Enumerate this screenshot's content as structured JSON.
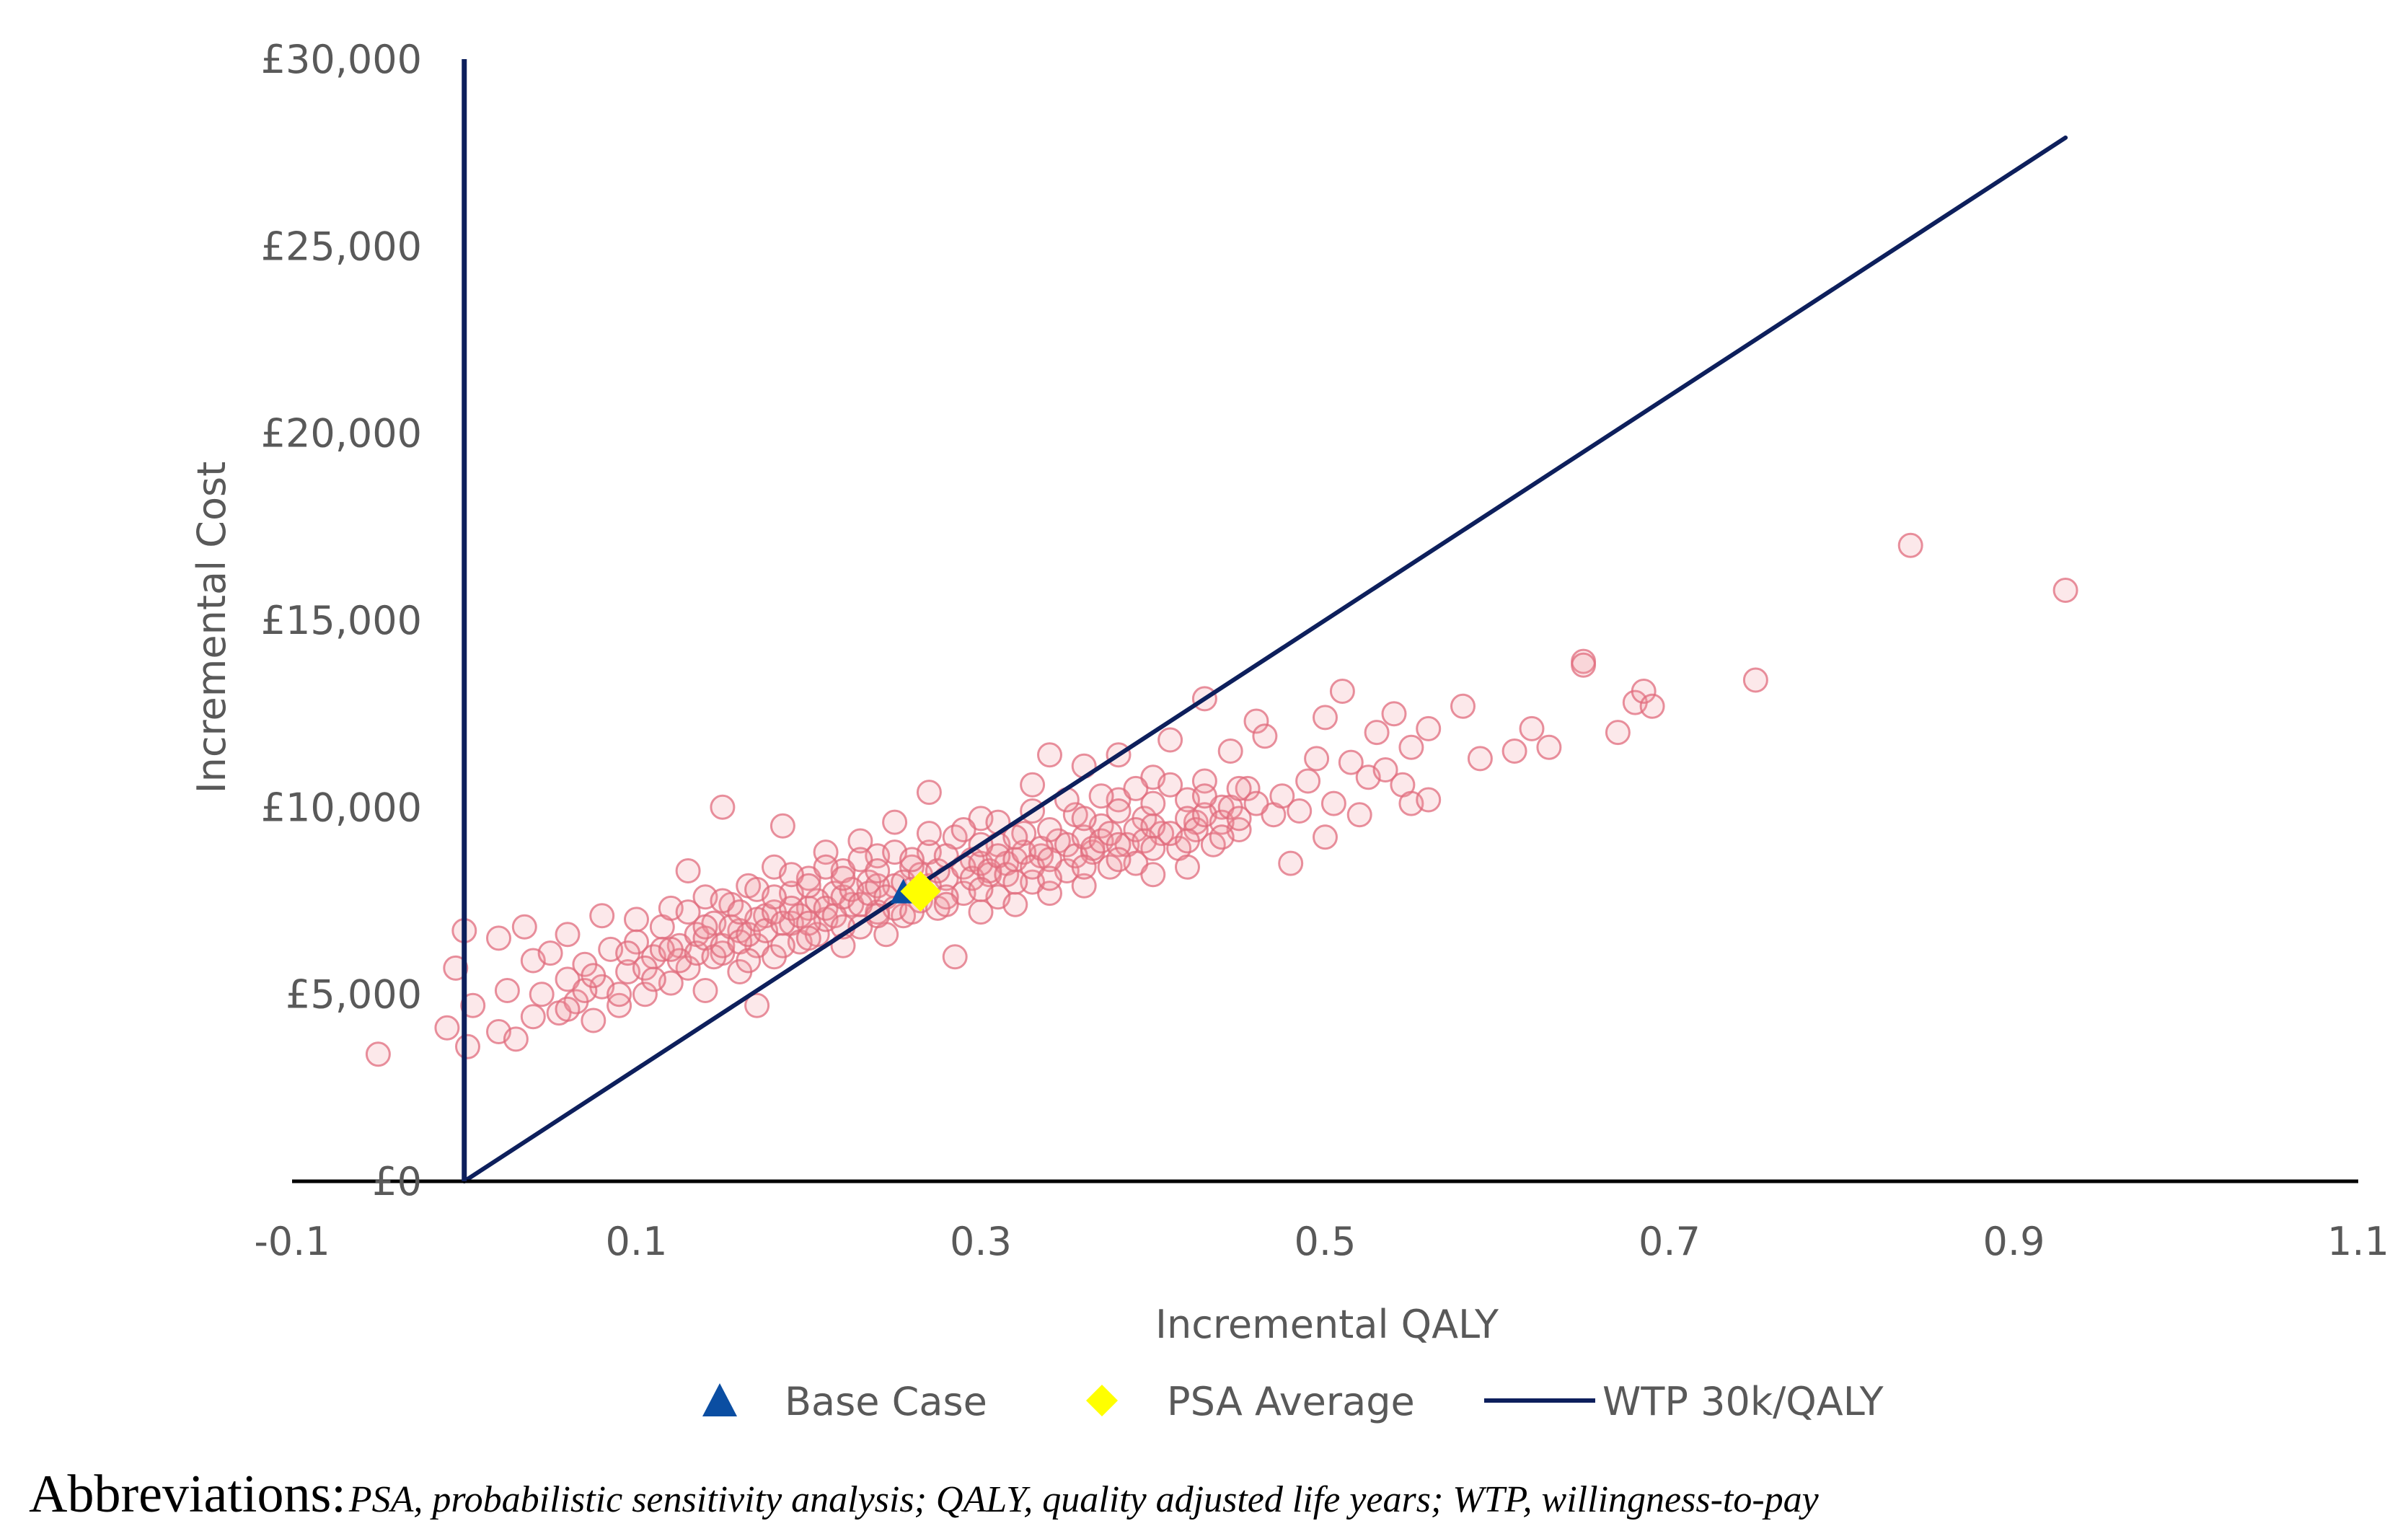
{
  "chart_data": {
    "type": "scatter",
    "xlabel": "Incremental QALY",
    "ylabel": "Incremental Cost",
    "xlim": [
      -0.1,
      1.1
    ],
    "ylim": [
      0,
      30000
    ],
    "x_ticks": [
      -0.1,
      0.1,
      0.3,
      0.5,
      0.7,
      0.9,
      1.1
    ],
    "x_tick_labels": [
      "-0.1",
      "0.1",
      "0.3",
      "0.5",
      "0.7",
      "0.9",
      "1.1"
    ],
    "y_ticks": [
      0,
      5000,
      10000,
      15000,
      20000,
      25000,
      30000
    ],
    "y_tick_labels": [
      "£0",
      "£5,000",
      "£10,000",
      "£15,000",
      "£20,000",
      "£25,000",
      "£30,000"
    ],
    "grid": false,
    "legend_position": "bottom",
    "colors": {
      "psa_points": "#e06b7c",
      "base_case": "#0b4ea2",
      "psa_average": "#ffff00",
      "wtp_line": "#0d1f5c",
      "axis": "#000000"
    },
    "series": [
      {
        "name": "PSA simulations",
        "type": "scatter",
        "in_legend": false,
        "points": [
          [
            -0.05,
            3400
          ],
          [
            -0.01,
            4100
          ],
          [
            -0.005,
            5700
          ],
          [
            0.0,
            6700
          ],
          [
            0.002,
            3600
          ],
          [
            0.005,
            4700
          ],
          [
            0.02,
            4000
          ],
          [
            0.02,
            6500
          ],
          [
            0.025,
            5100
          ],
          [
            0.03,
            3800
          ],
          [
            0.035,
            6800
          ],
          [
            0.04,
            4400
          ],
          [
            0.04,
            5900
          ],
          [
            0.045,
            5000
          ],
          [
            0.05,
            6100
          ],
          [
            0.055,
            4500
          ],
          [
            0.06,
            5400
          ],
          [
            0.06,
            6600
          ],
          [
            0.065,
            4800
          ],
          [
            0.07,
            5800
          ],
          [
            0.075,
            4300
          ],
          [
            0.08,
            7100
          ],
          [
            0.08,
            5200
          ],
          [
            0.085,
            6200
          ],
          [
            0.09,
            4700
          ],
          [
            0.095,
            5600
          ],
          [
            0.1,
            6400
          ],
          [
            0.1,
            7000
          ],
          [
            0.105,
            5000
          ],
          [
            0.11,
            6000
          ],
          [
            0.115,
            6800
          ],
          [
            0.12,
            5300
          ],
          [
            0.12,
            7300
          ],
          [
            0.125,
            6300
          ],
          [
            0.13,
            5700
          ],
          [
            0.13,
            8300
          ],
          [
            0.135,
            6600
          ],
          [
            0.14,
            7600
          ],
          [
            0.14,
            5100
          ],
          [
            0.145,
            6900
          ],
          [
            0.15,
            10000
          ],
          [
            0.15,
            6100
          ],
          [
            0.155,
            7400
          ],
          [
            0.16,
            5600
          ],
          [
            0.16,
            6700
          ],
          [
            0.165,
            7900
          ],
          [
            0.17,
            6300
          ],
          [
            0.17,
            4700
          ],
          [
            0.175,
            7100
          ],
          [
            0.18,
            8400
          ],
          [
            0.18,
            6000
          ],
          [
            0.185,
            9500
          ],
          [
            0.19,
            6900
          ],
          [
            0.19,
            7700
          ],
          [
            0.195,
            6400
          ],
          [
            0.2,
            7300
          ],
          [
            0.2,
            8100
          ],
          [
            0.205,
            6600
          ],
          [
            0.21,
            8800
          ],
          [
            0.21,
            7000
          ],
          [
            0.215,
            7700
          ],
          [
            0.22,
            6300
          ],
          [
            0.22,
            8300
          ],
          [
            0.225,
            7400
          ],
          [
            0.23,
            9100
          ],
          [
            0.23,
            6800
          ],
          [
            0.235,
            8000
          ],
          [
            0.24,
            7200
          ],
          [
            0.24,
            8700
          ],
          [
            0.245,
            6600
          ],
          [
            0.25,
            7900
          ],
          [
            0.25,
            9600
          ],
          [
            0.255,
            7100
          ],
          [
            0.26,
            8400
          ],
          [
            0.265,
            7500
          ],
          [
            0.27,
            8800
          ],
          [
            0.27,
            10400
          ],
          [
            0.275,
            7300
          ],
          [
            0.28,
            8100
          ],
          [
            0.285,
            9200
          ],
          [
            0.285,
            6000
          ],
          [
            0.29,
            7700
          ],
          [
            0.295,
            8600
          ],
          [
            0.3,
            7200
          ],
          [
            0.3,
            9700
          ],
          [
            0.305,
            8200
          ],
          [
            0.31,
            7600
          ],
          [
            0.31,
            9000
          ],
          [
            0.315,
            8500
          ],
          [
            0.32,
            7400
          ],
          [
            0.325,
            9300
          ],
          [
            0.33,
            8000
          ],
          [
            0.33,
            10600
          ],
          [
            0.335,
            8700
          ],
          [
            0.34,
            7700
          ],
          [
            0.34,
            11400
          ],
          [
            0.345,
            9100
          ],
          [
            0.35,
            8300
          ],
          [
            0.355,
            9800
          ],
          [
            0.36,
            7900
          ],
          [
            0.36,
            11100
          ],
          [
            0.365,
            8800
          ],
          [
            0.37,
            9500
          ],
          [
            0.375,
            8400
          ],
          [
            0.38,
            10200
          ],
          [
            0.38,
            11400
          ],
          [
            0.385,
            9000
          ],
          [
            0.39,
            8500
          ],
          [
            0.395,
            9700
          ],
          [
            0.4,
            8200
          ],
          [
            0.4,
            10800
          ],
          [
            0.405,
            9300
          ],
          [
            0.41,
            11800
          ],
          [
            0.415,
            8900
          ],
          [
            0.42,
            10200
          ],
          [
            0.42,
            8400
          ],
          [
            0.425,
            9600
          ],
          [
            0.43,
            10700
          ],
          [
            0.43,
            12900
          ],
          [
            0.435,
            9000
          ],
          [
            0.44,
            10000
          ],
          [
            0.445,
            11500
          ],
          [
            0.45,
            9400
          ],
          [
            0.455,
            10500
          ],
          [
            0.46,
            12300
          ],
          [
            0.465,
            11900
          ],
          [
            0.47,
            9800
          ],
          [
            0.475,
            10300
          ],
          [
            0.48,
            8500
          ],
          [
            0.485,
            9900
          ],
          [
            0.49,
            10700
          ],
          [
            0.495,
            11300
          ],
          [
            0.5,
            9200
          ],
          [
            0.5,
            12400
          ],
          [
            0.505,
            10100
          ],
          [
            0.51,
            13100
          ],
          [
            0.515,
            11200
          ],
          [
            0.52,
            9800
          ],
          [
            0.525,
            10800
          ],
          [
            0.53,
            12000
          ],
          [
            0.535,
            11000
          ],
          [
            0.54,
            12500
          ],
          [
            0.545,
            10600
          ],
          [
            0.55,
            11600
          ],
          [
            0.55,
            10100
          ],
          [
            0.56,
            12100
          ],
          [
            0.56,
            10200
          ],
          [
            0.58,
            12700
          ],
          [
            0.59,
            11300
          ],
          [
            0.61,
            11500
          ],
          [
            0.62,
            12100
          ],
          [
            0.63,
            11600
          ],
          [
            0.65,
            13900
          ],
          [
            0.65,
            13800
          ],
          [
            0.67,
            12000
          ],
          [
            0.68,
            12800
          ],
          [
            0.685,
            13100
          ],
          [
            0.69,
            12700
          ],
          [
            0.75,
            13400
          ],
          [
            0.84,
            17000
          ],
          [
            0.93,
            15800
          ],
          [
            0.06,
            4600
          ],
          [
            0.07,
            5100
          ],
          [
            0.075,
            5500
          ],
          [
            0.09,
            5000
          ],
          [
            0.095,
            6100
          ],
          [
            0.105,
            5700
          ],
          [
            0.11,
            5400
          ],
          [
            0.115,
            6200
          ],
          [
            0.125,
            5900
          ],
          [
            0.135,
            6100
          ],
          [
            0.14,
            6500
          ],
          [
            0.145,
            6000
          ],
          [
            0.15,
            6300
          ],
          [
            0.155,
            6800
          ],
          [
            0.16,
            6400
          ],
          [
            0.165,
            6600
          ],
          [
            0.17,
            7000
          ],
          [
            0.175,
            6700
          ],
          [
            0.18,
            7200
          ],
          [
            0.185,
            6900
          ],
          [
            0.19,
            7300
          ],
          [
            0.195,
            7100
          ],
          [
            0.2,
            6900
          ],
          [
            0.205,
            7500
          ],
          [
            0.21,
            7300
          ],
          [
            0.215,
            7100
          ],
          [
            0.22,
            7600
          ],
          [
            0.225,
            7800
          ],
          [
            0.23,
            7400
          ],
          [
            0.235,
            7700
          ],
          [
            0.24,
            7900
          ],
          [
            0.245,
            7600
          ],
          [
            0.25,
            7300
          ],
          [
            0.255,
            8000
          ],
          [
            0.26,
            7800
          ],
          [
            0.265,
            8200
          ],
          [
            0.27,
            7900
          ],
          [
            0.275,
            8300
          ],
          [
            0.28,
            7600
          ],
          [
            0.29,
            8400
          ],
          [
            0.295,
            8100
          ],
          [
            0.3,
            8500
          ],
          [
            0.305,
            8300
          ],
          [
            0.31,
            8700
          ],
          [
            0.315,
            8200
          ],
          [
            0.32,
            8600
          ],
          [
            0.325,
            8800
          ],
          [
            0.33,
            8400
          ],
          [
            0.335,
            8900
          ],
          [
            0.34,
            8600
          ],
          [
            0.35,
            9000
          ],
          [
            0.355,
            8700
          ],
          [
            0.36,
            9200
          ],
          [
            0.365,
            8900
          ],
          [
            0.37,
            9100
          ],
          [
            0.375,
            9300
          ],
          [
            0.38,
            9000
          ],
          [
            0.39,
            9400
          ],
          [
            0.395,
            9100
          ],
          [
            0.4,
            9500
          ],
          [
            0.41,
            9300
          ],
          [
            0.42,
            9700
          ],
          [
            0.425,
            9400
          ],
          [
            0.43,
            9800
          ],
          [
            0.44,
            9600
          ],
          [
            0.445,
            10000
          ],
          [
            0.45,
            9700
          ],
          [
            0.46,
            10100
          ],
          [
            0.165,
            5900
          ],
          [
            0.185,
            6300
          ],
          [
            0.2,
            6500
          ],
          [
            0.22,
            6800
          ],
          [
            0.24,
            7100
          ],
          [
            0.26,
            7200
          ],
          [
            0.28,
            7400
          ],
          [
            0.3,
            7800
          ],
          [
            0.32,
            8000
          ],
          [
            0.34,
            8100
          ],
          [
            0.36,
            8400
          ],
          [
            0.38,
            8600
          ],
          [
            0.4,
            8900
          ],
          [
            0.42,
            9100
          ],
          [
            0.44,
            9200
          ],
          [
            0.13,
            7200
          ],
          [
            0.15,
            7500
          ],
          [
            0.17,
            7800
          ],
          [
            0.19,
            8200
          ],
          [
            0.21,
            8400
          ],
          [
            0.23,
            8600
          ],
          [
            0.25,
            8800
          ],
          [
            0.27,
            9300
          ],
          [
            0.29,
            9400
          ],
          [
            0.31,
            9600
          ],
          [
            0.33,
            9900
          ],
          [
            0.35,
            10200
          ],
          [
            0.37,
            10300
          ],
          [
            0.39,
            10500
          ],
          [
            0.41,
            10600
          ],
          [
            0.12,
            6200
          ],
          [
            0.14,
            6800
          ],
          [
            0.16,
            7200
          ],
          [
            0.18,
            7600
          ],
          [
            0.2,
            7900
          ],
          [
            0.22,
            8100
          ],
          [
            0.24,
            8300
          ],
          [
            0.26,
            8600
          ],
          [
            0.28,
            8700
          ],
          [
            0.3,
            9000
          ],
          [
            0.32,
            9200
          ],
          [
            0.34,
            9400
          ],
          [
            0.36,
            9700
          ],
          [
            0.38,
            9900
          ],
          [
            0.4,
            10100
          ],
          [
            0.43,
            10300
          ],
          [
            0.45,
            10500
          ]
        ]
      },
      {
        "name": "Base Case",
        "type": "scatter",
        "marker": "triangle",
        "points": [
          [
            0.255,
            7700
          ]
        ]
      },
      {
        "name": "PSA Average",
        "type": "scatter",
        "marker": "diamond",
        "points": [
          [
            0.265,
            7750
          ]
        ]
      },
      {
        "name": "WTP 30k/QALY",
        "type": "line",
        "points": [
          [
            0.0,
            0
          ],
          [
            0.93,
            27900
          ]
        ]
      }
    ],
    "legend": [
      {
        "key": "base_case",
        "label": "Base Case"
      },
      {
        "key": "psa_average",
        "label": "PSA Average"
      },
      {
        "key": "wtp_line",
        "label": "WTP 30k/QALY"
      }
    ]
  },
  "footnote": {
    "label": "Abbreviations:",
    "text": "PSA, probabilistic sensitivity analysis; QALY, quality adjusted life years; WTP, willingness-to-pay"
  }
}
